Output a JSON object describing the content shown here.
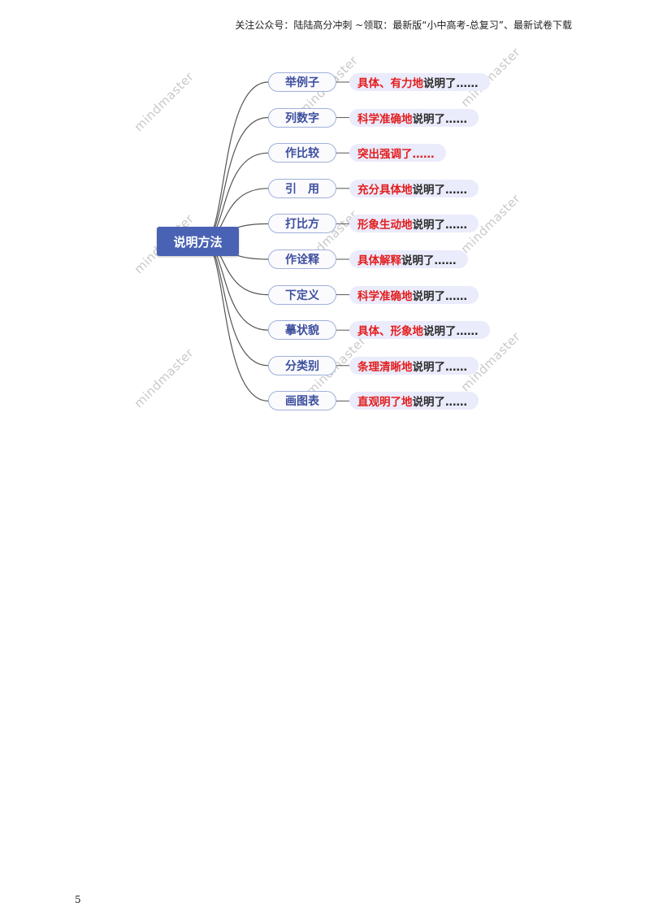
{
  "header": {
    "text": "关注公众号：陆陆高分冲刺  ~领取：最新版“小中高考-总复习”、最新试卷下载"
  },
  "mindmap": {
    "root_label": "说明方法",
    "watermark_text": "mindmaster",
    "methods": [
      {
        "label": "举例子",
        "effect_red": "具体、有力地",
        "effect_black": "说明了……"
      },
      {
        "label": "列数字",
        "effect_red": "科学准确地",
        "effect_black": "说明了……"
      },
      {
        "label": "作比较",
        "effect_red": "突出强调了……",
        "effect_black": ""
      },
      {
        "label": "引　用",
        "effect_red": "充分具体地",
        "effect_black": "说明了……"
      },
      {
        "label": "打比方",
        "effect_red": "形象生动地",
        "effect_black": "说明了……"
      },
      {
        "label": "作诠释",
        "effect_red": "具体解释",
        "effect_black": "说明了……"
      },
      {
        "label": "下定义",
        "effect_red": "科学准确地",
        "effect_black": "说明了……"
      },
      {
        "label": "摹状貌",
        "effect_red": "具体、形象地",
        "effect_black": "说明了……"
      },
      {
        "label": "分类别",
        "effect_red": "条理清晰地",
        "effect_black": "说明了……"
      },
      {
        "label": "画图表",
        "effect_red": "直观明了地",
        "effect_black": "说明了……"
      }
    ],
    "colors": {
      "root_fill": "#4a62b3",
      "method_text": "#3d4f9e",
      "effect_highlight": "#e31d1d",
      "effect_fill": "#eaebfb",
      "branch_line": "#555555"
    }
  },
  "page_number": "5"
}
